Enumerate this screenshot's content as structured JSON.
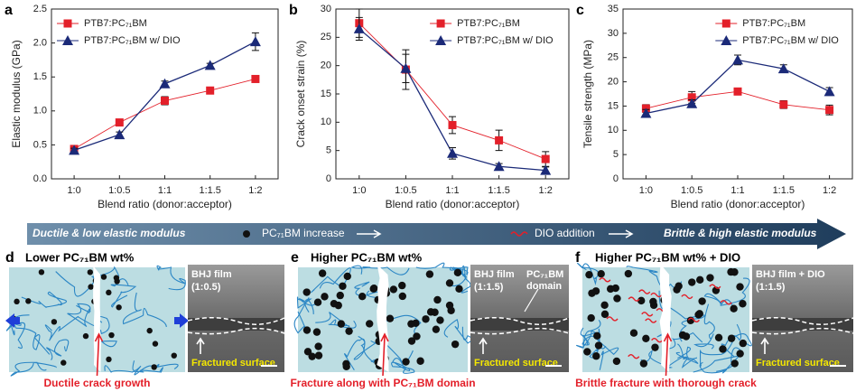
{
  "chart_data": [
    {
      "type": "line",
      "panel": "a",
      "ylabel": "Elastic modulus (GPa)",
      "xlabel": "Blend ratio (donor:acceptor)",
      "categories": [
        "1:0",
        "1:0.5",
        "1:1",
        "1:1.5",
        "1:2"
      ],
      "ylim": [
        0,
        2.5
      ],
      "yticks": [
        {
          "value": 0,
          "label": "0.0"
        },
        0.5,
        {
          "value": 1,
          "label": "1.0"
        },
        1.5,
        {
          "value": 2,
          "label": "2.0"
        },
        2.5
      ],
      "legend": "upper left",
      "series": [
        {
          "name": "PTB7:PC₇₁BM",
          "color": "#e3202a",
          "marker": "square",
          "values": [
            0.44,
            0.83,
            1.15,
            1.3,
            1.47
          ],
          "errors": [
            0.02,
            0.03,
            0.06,
            0.03,
            0.02
          ]
        },
        {
          "name": "PTB7:PC₇₁BM w/ DIO",
          "color": "#1b2a78",
          "marker": "triangle",
          "values": [
            0.42,
            0.65,
            1.4,
            1.67,
            2.02
          ],
          "errors": [
            0.03,
            0.04,
            0.04,
            0.03,
            0.13
          ]
        }
      ]
    },
    {
      "type": "line",
      "panel": "b",
      "ylabel": "Crack onset strain (%)",
      "xlabel": "Blend ratio (donor:acceptor)",
      "categories": [
        "1:0",
        "1:0.5",
        "1:1",
        "1:1.5",
        "1:2"
      ],
      "ylim": [
        0,
        30
      ],
      "yticks": [
        0,
        5,
        10,
        15,
        20,
        25,
        30
      ],
      "legend": "upper right",
      "series": [
        {
          "name": "PTB7:PC₇₁BM",
          "color": "#e3202a",
          "marker": "square",
          "values": [
            27.5,
            19.3,
            9.5,
            6.8,
            3.5
          ],
          "errors": [
            2.5,
            3.5,
            1.5,
            1.8,
            1.3
          ]
        },
        {
          "name": "PTB7:PC₇₁BM w/ DIO",
          "color": "#1b2a78",
          "marker": "triangle",
          "values": [
            26.5,
            19.5,
            4.5,
            2.2,
            1.5
          ],
          "errors": [
            2.0,
            2.5,
            1.0,
            0.5,
            0.6
          ]
        }
      ]
    },
    {
      "type": "line",
      "panel": "c",
      "ylabel": "Tensile strength (MPa)",
      "xlabel": "Blend ratio (donor:acceptor)",
      "categories": [
        "1:0",
        "1:0.5",
        "1:1",
        "1:1.5",
        "1:2"
      ],
      "ylim": [
        0,
        35
      ],
      "yticks": [
        0,
        5,
        10,
        15,
        20,
        25,
        30,
        35
      ],
      "legend": "upper right",
      "series": [
        {
          "name": "PTB7:PC₇₁BM",
          "color": "#e3202a",
          "marker": "square",
          "values": [
            14.5,
            16.8,
            18.0,
            15.3,
            14.2
          ],
          "errors": [
            0.8,
            1.2,
            0.5,
            0.8,
            1.0
          ]
        },
        {
          "name": "PTB7:PC₇₁BM w/ DIO",
          "color": "#1b2a78",
          "marker": "triangle",
          "values": [
            13.5,
            15.5,
            24.5,
            22.7,
            18.0
          ],
          "errors": [
            0.8,
            0.8,
            1.0,
            0.8,
            0.8
          ]
        }
      ]
    }
  ],
  "banner": {
    "left": "Ductile & low elastic modulus",
    "middle1": "PC₇₁BM increase",
    "middle2": "DIO addition",
    "right": "Brittle & high elastic modulus"
  },
  "panels": [
    {
      "label": "d",
      "title": "Lower PC₇₁BM wt%",
      "image_labels": [
        "BHJ film",
        "(1:0.5)"
      ],
      "surface": "Fractured surface",
      "caption": "Ductile crack growth"
    },
    {
      "label": "e",
      "title": "Higher PC₇₁BM wt%",
      "image_labels": [
        "BHJ film",
        "(1:1.5)"
      ],
      "domain_label": [
        "PC₇₁BM",
        "domain"
      ],
      "surface": "Fractured surface",
      "caption": "Fracture along with PC₇₁BM domain"
    },
    {
      "label": "f",
      "title": "Higher PC₇₁BM wt% + DIO",
      "image_labels": [
        "BHJ film + DIO",
        "(1:1.5)"
      ],
      "surface": "Fractured surface",
      "caption": "Brittle fracture with thorough crack"
    }
  ]
}
